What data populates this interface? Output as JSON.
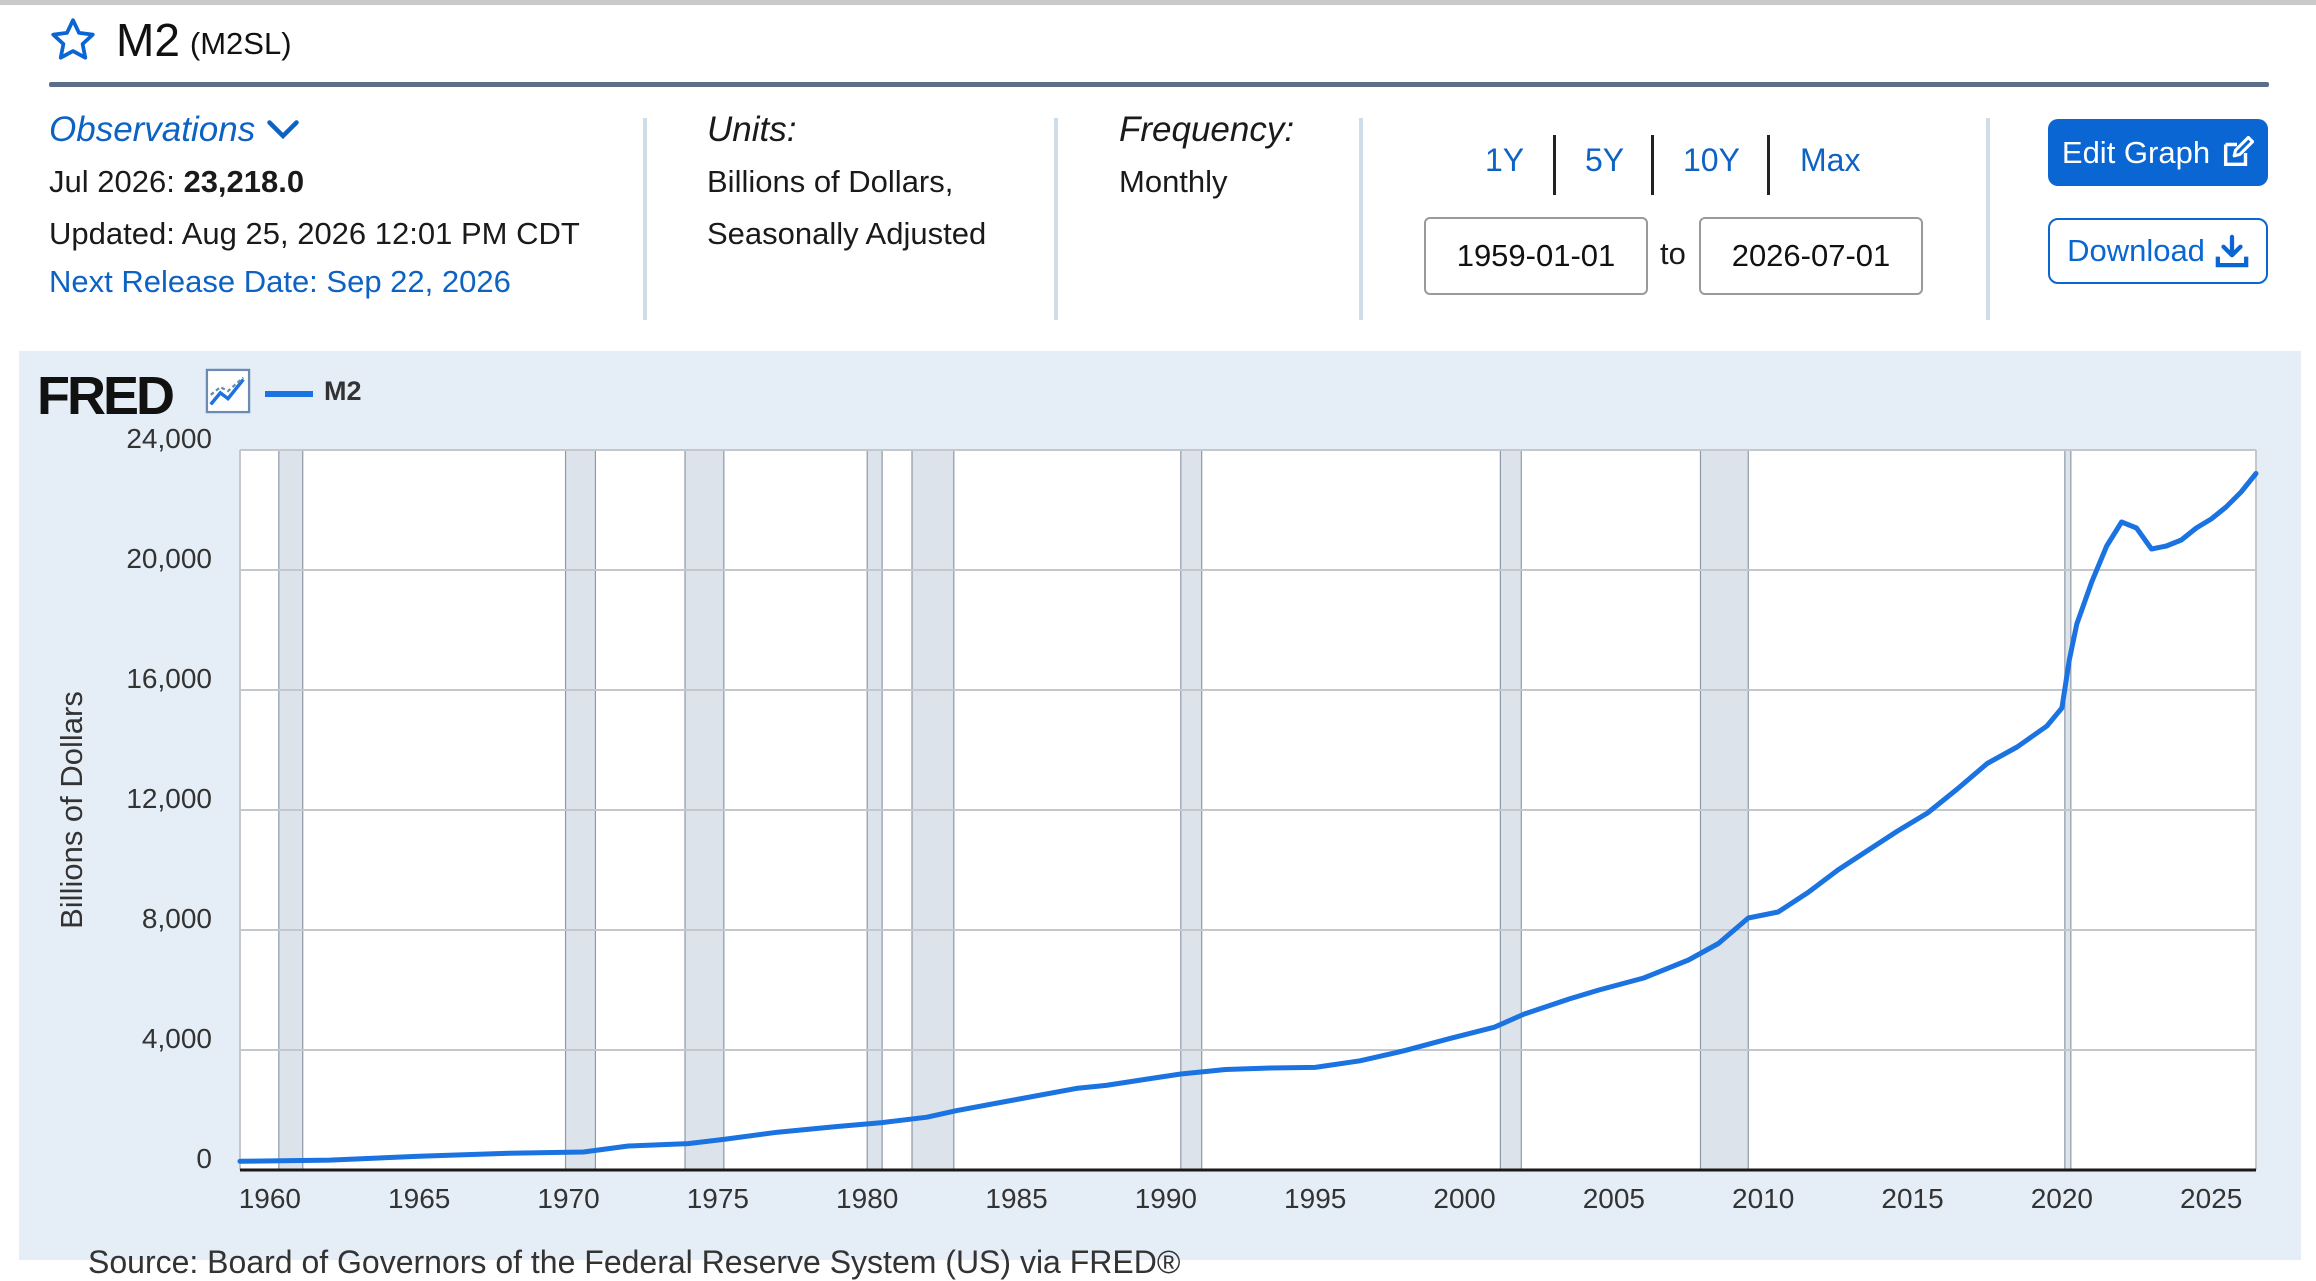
{
  "header": {
    "title": "M2",
    "series_id": "(M2SL)",
    "star_icon": "star-outline-icon"
  },
  "observations": {
    "label": "Observations",
    "latest_period": "Jul 2026:",
    "latest_value": "23,218.0",
    "updated": "Updated: Aug 25, 2026 12:01 PM CDT",
    "next_release": "Next Release Date: Sep 22, 2026"
  },
  "units": {
    "label": "Units:",
    "line1": "Billions of Dollars,",
    "line2": "Seasonally Adjusted"
  },
  "frequency": {
    "label": "Frequency:",
    "value": "Monthly"
  },
  "range": {
    "buttons": [
      "1Y",
      "5Y",
      "10Y",
      "Max"
    ],
    "start": "1959-01-01",
    "to_label": "to",
    "end": "2026-07-01"
  },
  "actions": {
    "edit_label": "Edit Graph",
    "download_label": "Download"
  },
  "colors": {
    "accent": "#0a66d2",
    "series": "#1a73e0",
    "panel": "#e5eef7",
    "recession": "#dde3ea"
  },
  "chart_data": {
    "type": "line",
    "logo": "FRED",
    "legend": [
      "M2"
    ],
    "ylabel": "Billions of Dollars",
    "xlim": [
      1959.0,
      2026.5
    ],
    "ylim": [
      0,
      24000
    ],
    "yticks": [
      0,
      4000,
      8000,
      12000,
      16000,
      20000,
      24000
    ],
    "ytick_labels": [
      "0",
      "4,000",
      "8,000",
      "12,000",
      "16,000",
      "20,000",
      "24,000"
    ],
    "xticks": [
      1960,
      1965,
      1970,
      1975,
      1980,
      1985,
      1990,
      1995,
      2000,
      2005,
      2010,
      2015,
      2020,
      2025
    ],
    "recessions": [
      [
        1960.3,
        1961.1
      ],
      [
        1969.9,
        1970.9
      ],
      [
        1973.9,
        1975.2
      ],
      [
        1980.0,
        1980.5
      ],
      [
        1981.5,
        1982.9
      ],
      [
        1990.5,
        1991.2
      ],
      [
        2001.2,
        2001.9
      ],
      [
        2007.9,
        2009.5
      ],
      [
        2020.1,
        2020.3
      ]
    ],
    "series": [
      {
        "name": "M2",
        "x": [
          1959.0,
          1962.0,
          1965.0,
          1968.0,
          1970.5,
          1972.0,
          1974.0,
          1975.2,
          1977.0,
          1979.0,
          1980.5,
          1982.0,
          1983.0,
          1985.0,
          1987.0,
          1988.0,
          1989.5,
          1990.5,
          1992.0,
          1993.5,
          1995.0,
          1996.5,
          1998.0,
          1999.5,
          2001.0,
          2002.0,
          2003.5,
          2004.5,
          2006.0,
          2007.5,
          2008.5,
          2009.5,
          2010.5,
          2011.5,
          2012.5,
          2013.5,
          2014.5,
          2015.5,
          2016.5,
          2017.5,
          2018.5,
          2019.5,
          2020.0,
          2020.25,
          2020.5,
          2021.0,
          2021.5,
          2022.0,
          2022.5,
          2023.0,
          2023.5,
          2024.0,
          2024.5,
          2025.0,
          2025.5,
          2026.0,
          2026.5
        ],
        "values": [
          290,
          330,
          460,
          560,
          600,
          800,
          880,
          1020,
          1260,
          1450,
          1580,
          1760,
          1980,
          2350,
          2720,
          2820,
          3050,
          3200,
          3350,
          3400,
          3420,
          3640,
          3980,
          4380,
          4760,
          5200,
          5700,
          6000,
          6400,
          7000,
          7550,
          8400,
          8600,
          9250,
          10000,
          10650,
          11300,
          11900,
          12700,
          13550,
          14100,
          14800,
          15400,
          17000,
          18200,
          19600,
          20800,
          21600,
          21400,
          20700,
          20800,
          21000,
          21400,
          21700,
          22100,
          22600,
          23218
        ]
      }
    ],
    "source_note": "Source: Board of Governors of the Federal Reserve System (US) via FRED®"
  }
}
